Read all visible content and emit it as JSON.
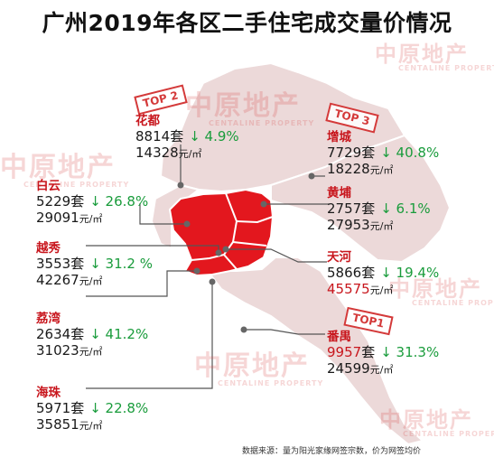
{
  "title": "广州2019年各区二手住宅成交量价情况",
  "unit_volume": "套",
  "unit_price": "元/㎡",
  "watermark": {
    "brand": "中原地产",
    "sub": "CENTALINE PROPERTY"
  },
  "source": "数据来源：量为阳光家缘网签宗数，价为网签均价",
  "colors": {
    "highlight": "#e3171e",
    "region": "#ecd9d9",
    "accent": "#c8161d",
    "down": "#1a9c3c"
  },
  "districts": {
    "huadu": {
      "name": "花都",
      "volume": "8814",
      "change": "↓ 4.9%",
      "price": "14328",
      "rank": "TOP 2"
    },
    "baiyun": {
      "name": "白云",
      "volume": "5229",
      "change": "↓ 26.8%",
      "price": "29091"
    },
    "yuexiu": {
      "name": "越秀",
      "volume": "3553",
      "change": "↓ 31.2 %",
      "price": "42267"
    },
    "liwan": {
      "name": "荔湾",
      "volume": "2634",
      "change": "↓ 41.2%",
      "price": "31023"
    },
    "haizhu": {
      "name": "海珠",
      "volume": "5971",
      "change": "↓ 22.8%",
      "price": "35851"
    },
    "zengcheng": {
      "name": "增城",
      "volume": "7729",
      "change": "↓ 40.8%",
      "price": "18228",
      "rank": "TOP 3"
    },
    "huangpu": {
      "name": "黄埔",
      "volume": "2757",
      "change": "↓ 6.1%",
      "price": "27953"
    },
    "tianhe": {
      "name": "天河",
      "volume": "5866",
      "change": "↓ 19.4%",
      "price": "45575"
    },
    "panyu": {
      "name": "番禺",
      "volume": "9957",
      "change": "↓ 31.3%",
      "price": "24599",
      "rank": "TOP1"
    }
  }
}
